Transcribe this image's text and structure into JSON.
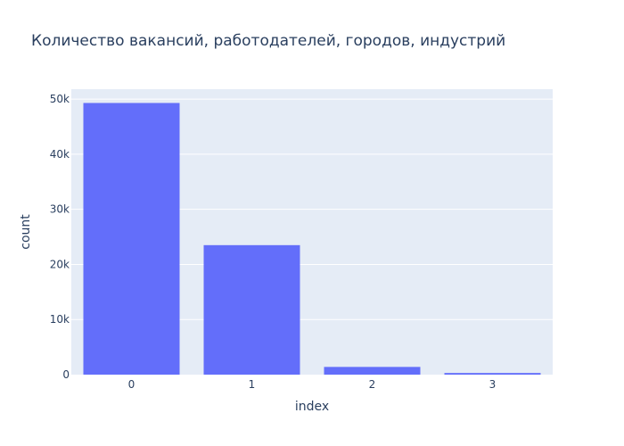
{
  "chart_data": {
    "type": "bar",
    "title": "Количество вакансий, работодателей, городов, индустрий",
    "xlabel": "index",
    "ylabel": "count",
    "categories": [
      "0",
      "1",
      "2",
      "3"
    ],
    "values": [
      49300,
      23500,
      1400,
      300
    ],
    "ylim": [
      0,
      51800
    ],
    "yticks": [
      0,
      10000,
      20000,
      30000,
      40000,
      50000
    ],
    "ytick_labels": [
      "0",
      "10k",
      "20k",
      "30k",
      "40k",
      "50k"
    ],
    "grid": true,
    "colors": {
      "bar": "#636efa",
      "plot_bg": "#e5ecf6",
      "text": "#2a3f5f"
    }
  }
}
